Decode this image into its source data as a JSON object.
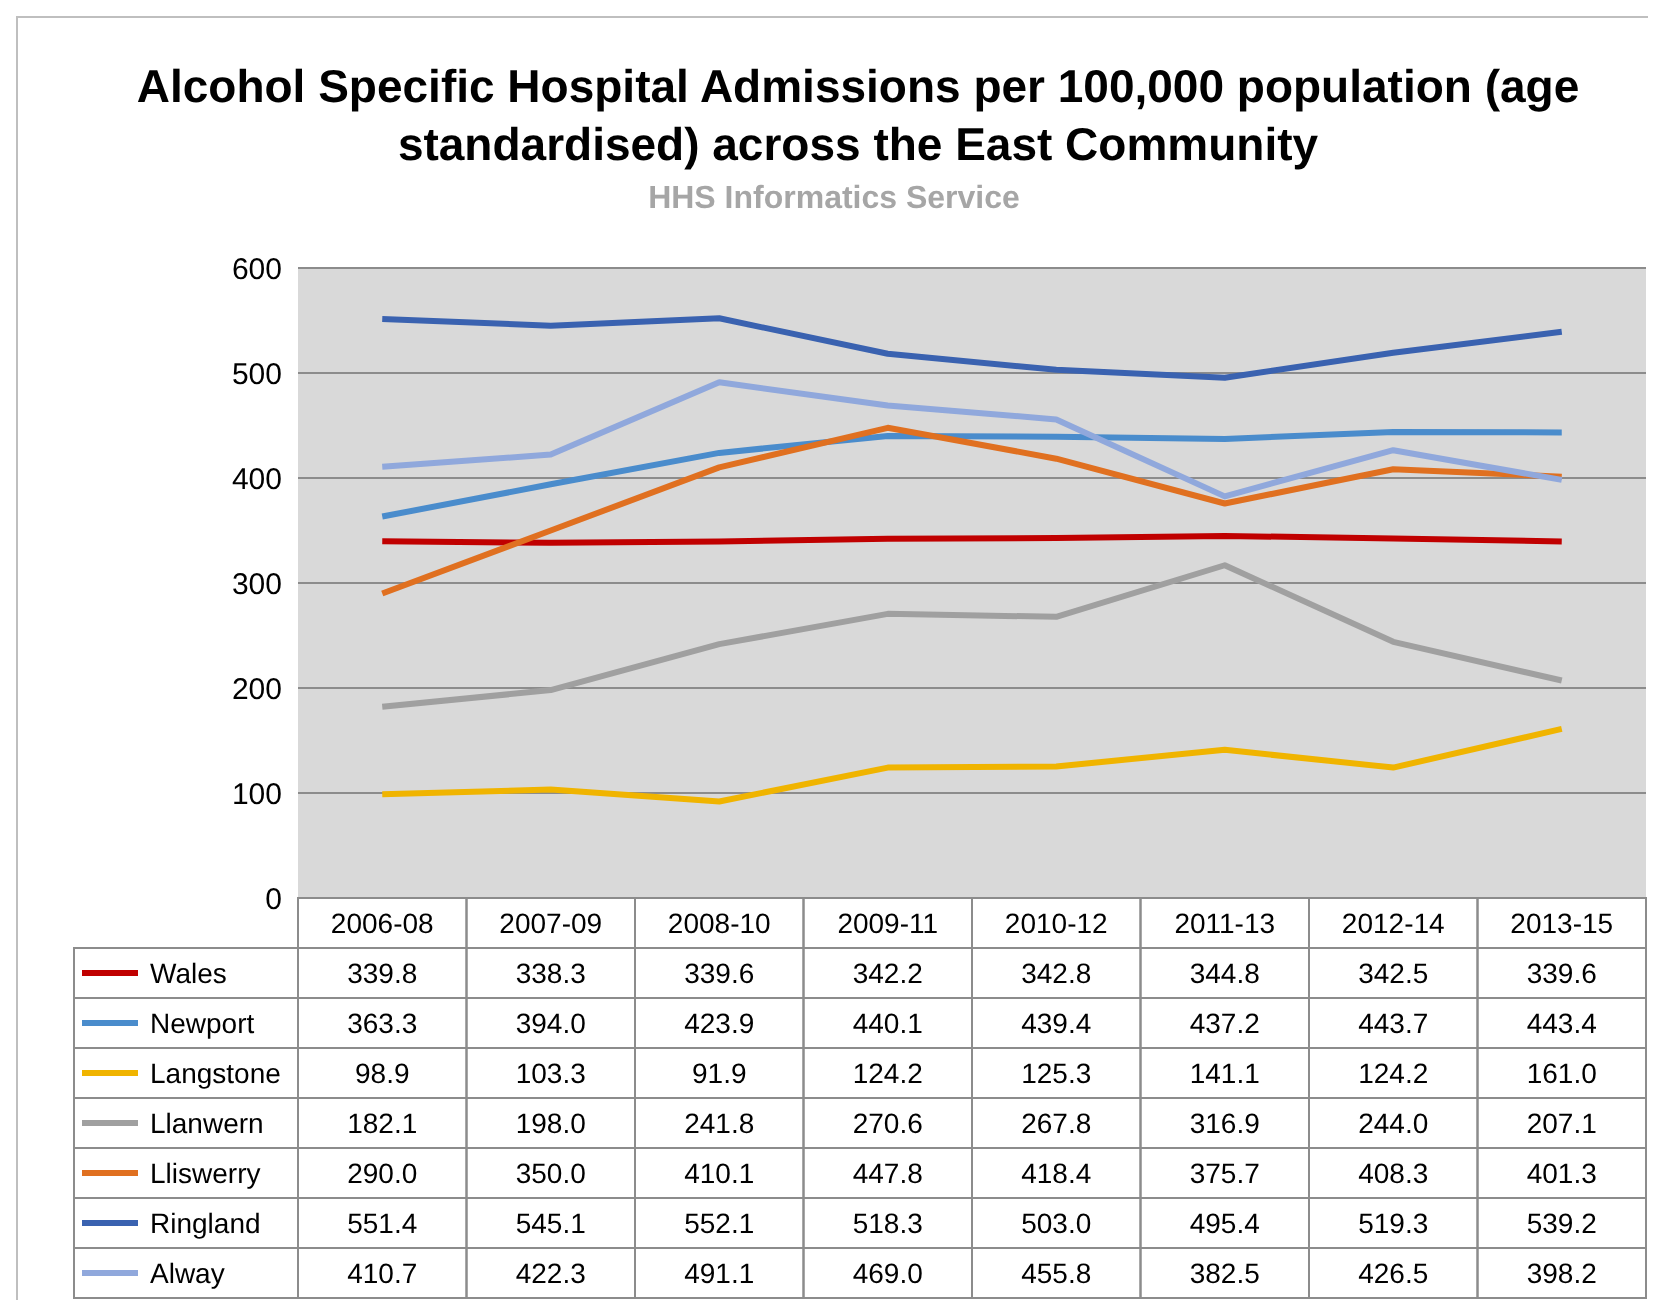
{
  "chart_data": {
    "type": "line",
    "title": "Alcohol Specific Hospital Admissions per 100,000 population (age standardised) across the East Community",
    "subtitle": "HHS Informatics Service",
    "categories": [
      "2006-08",
      "2007-09",
      "2008-10",
      "2009-11",
      "2010-12",
      "2011-13",
      "2012-14",
      "2013-15"
    ],
    "series": [
      {
        "name": "Wales",
        "color": "#c00000",
        "values": [
          339.8,
          338.3,
          339.6,
          342.2,
          342.8,
          344.8,
          342.5,
          339.6
        ],
        "value_labels": [
          "339.8",
          "338.3",
          "339.6",
          "342.2",
          "342.8",
          "344.8",
          "342.5",
          "339.6"
        ]
      },
      {
        "name": "Newport",
        "color": "#4a8ccc",
        "values": [
          363.3,
          394.0,
          423.9,
          440.1,
          439.4,
          437.2,
          443.7,
          443.4
        ],
        "value_labels": [
          "363.3",
          "394.0",
          "423.9",
          "440.1",
          "439.4",
          "437.2",
          "443.7",
          "443.4"
        ]
      },
      {
        "name": "Langstone",
        "color": "#f0b400",
        "values": [
          98.9,
          103.3,
          91.9,
          124.2,
          125.3,
          141.1,
          124.2,
          161.0
        ],
        "value_labels": [
          "98.9",
          "103.3",
          "91.9",
          "124.2",
          "125.3",
          "141.1",
          "124.2",
          "161.0"
        ]
      },
      {
        "name": "Llanwern",
        "color": "#a0a0a0",
        "values": [
          182.1,
          198.0,
          241.8,
          270.6,
          267.8,
          316.9,
          244.0,
          207.1
        ],
        "value_labels": [
          "182.1",
          "198.0",
          "241.8",
          "270.6",
          "267.8",
          "316.9",
          "244.0",
          "207.1"
        ]
      },
      {
        "name": "Lliswerry",
        "color": "#e07020",
        "values": [
          290.0,
          350.0,
          410.1,
          447.8,
          418.4,
          375.7,
          408.3,
          401.3
        ],
        "value_labels": [
          "290.0",
          "350.0",
          "410.1",
          "447.8",
          "418.4",
          "375.7",
          "408.3",
          "401.3"
        ]
      },
      {
        "name": "Ringland",
        "color": "#3a62b0",
        "values": [
          551.4,
          545.1,
          552.1,
          518.3,
          503.0,
          495.4,
          519.3,
          539.2
        ],
        "value_labels": [
          "551.4",
          "545.1",
          "552.1",
          "518.3",
          "503.0",
          "495.4",
          "519.3",
          "539.2"
        ]
      },
      {
        "name": "Alway",
        "color": "#90a8dc",
        "values": [
          410.7,
          422.3,
          491.1,
          469.0,
          455.8,
          382.5,
          426.5,
          398.2
        ],
        "value_labels": [
          "410.7",
          "422.3",
          "491.1",
          "469.0",
          "455.8",
          "382.5",
          "426.5",
          "398.2"
        ]
      }
    ],
    "ylim": [
      0,
      600
    ],
    "yticks": [
      0,
      100,
      200,
      300,
      400,
      500,
      600
    ],
    "grid": "y",
    "legend": "bottom",
    "marker": "none",
    "line_style": "solid"
  }
}
